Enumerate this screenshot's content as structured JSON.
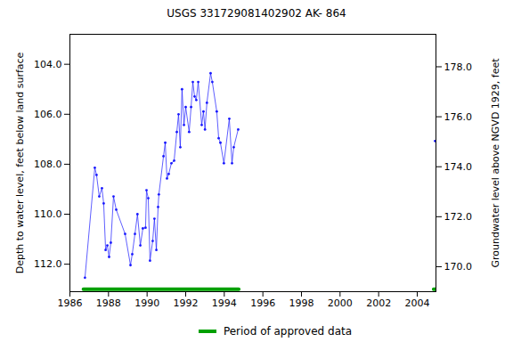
{
  "chart_data": {
    "type": "line",
    "title": "USGS 331729081402902 AK- 864",
    "ylabel": "Depth to water level, feet below land surface",
    "y2label": "Groundwater level above NGVD 1929, feet",
    "xlim": [
      1986,
      2004.97
    ],
    "xticks": [
      1986,
      1988,
      1990,
      1992,
      1994,
      1996,
      1998,
      2000,
      2002,
      2004
    ],
    "ylim": [
      113.1,
      102.8
    ],
    "yticks": [
      {
        "value": 104,
        "label": "104.0"
      },
      {
        "value": 106,
        "label": "106.0"
      },
      {
        "value": 108,
        "label": "108.0"
      },
      {
        "value": 110,
        "label": "110.0"
      },
      {
        "value": 112,
        "label": "112.0"
      }
    ],
    "y2lim": [
      169.0,
      179.3
    ],
    "y2ticks": [
      {
        "value": 170,
        "label": "170.0"
      },
      {
        "value": 172,
        "label": "172.0"
      },
      {
        "value": 174,
        "label": "174.0"
      },
      {
        "value": 176,
        "label": "176.0"
      },
      {
        "value": 178,
        "label": "178.0"
      }
    ],
    "grid": false,
    "legend": "bottom",
    "series": [
      {
        "type": "line",
        "marker": "dot",
        "color": "#1a1aff",
        "x": [
          1986.78,
          1987.29,
          1987.38,
          1987.52,
          1987.66,
          1987.75,
          1987.85,
          1987.94,
          1988.03,
          1988.12,
          1988.26,
          1988.4,
          1988.86,
          1989.14,
          1989.23,
          1989.37,
          1989.5,
          1989.65,
          1989.78,
          1989.92,
          1989.97,
          1990.06,
          1990.15,
          1990.29,
          1990.38,
          1990.48,
          1990.57,
          1990.61,
          1990.85,
          1990.94,
          1991.03,
          1991.12,
          1991.26,
          1991.4,
          1991.54,
          1991.63,
          1991.72,
          1991.81,
          1991.91,
          1992.0,
          1992.18,
          1992.28,
          1992.37,
          1992.46,
          1992.55,
          1992.65,
          1992.83,
          1992.92,
          1993.0,
          1993.1,
          1993.29,
          1993.38,
          1993.61,
          1993.71,
          1993.8,
          1993.98,
          1994.26,
          1994.4,
          1994.49,
          1994.72,
          1994.8,
          2004.92
        ],
        "values": [
          112.54,
          108.14,
          108.43,
          109.29,
          108.96,
          109.57,
          111.43,
          111.25,
          111.71,
          111.14,
          109.29,
          109.82,
          110.79,
          112.04,
          111.6,
          110.79,
          110.0,
          111.25,
          110.57,
          110.54,
          109.04,
          109.36,
          111.86,
          111.07,
          110.18,
          111.43,
          109.71,
          109.21,
          107.68,
          107.14,
          108.57,
          108.39,
          107.96,
          107.86,
          106.71,
          106.0,
          107.32,
          105.0,
          106.43,
          105.71,
          106.71,
          105.71,
          104.71,
          105.29,
          105.43,
          104.71,
          106.43,
          105.89,
          106.61,
          105.54,
          104.36,
          104.71,
          105.89,
          106.96,
          107.14,
          107.96,
          106.18,
          107.96,
          107.32,
          106.61,
          null,
          107.07
        ]
      },
      {
        "type": "line",
        "name": "Period of approved data",
        "color": "#00a000",
        "x": [
          1986.7,
          1994.75,
          1994.8,
          2004.85,
          2004.97
        ],
        "values": [
          113.0,
          113.0,
          null,
          113.0,
          113.0
        ]
      }
    ]
  }
}
